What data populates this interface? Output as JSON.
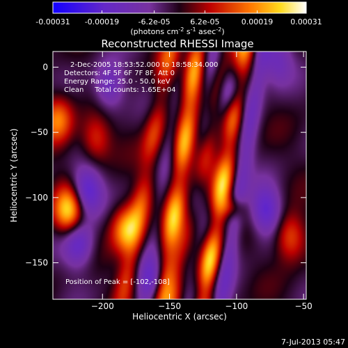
{
  "chart_data": {
    "type": "heatmap",
    "title": "Reconstructed RHESSI Image",
    "xlabel": "Heliocentric X (arcsec)",
    "ylabel": "Heliocentric Y (arcsec)",
    "xlim": [
      -237,
      -48
    ],
    "ylim": [
      -178,
      12
    ],
    "xticks": [
      -200,
      -150,
      -100,
      -50
    ],
    "yticks": [
      0,
      -50,
      -100,
      -150
    ],
    "colorbar": {
      "range": [
        -0.00031,
        0.00031
      ],
      "ticks": [
        "-0.00031",
        "-0.00019",
        "-6.2e-05",
        "6.2e-05",
        "0.00019",
        "0.00031"
      ],
      "unit_label_parts": [
        "(photons cm",
        "-2",
        " s",
        "-1",
        " asec",
        "-2",
        ")"
      ]
    },
    "annotations": [
      "2-Dec-2005 18:53:52.000 to 18:58:34.000",
      "Detectors: 4F 5F 6F 7F 8F, Att 0",
      "Energy Range: 25.0 - 50.0 keV",
      "Clean     Total counts: 1.65E+04"
    ],
    "peak_label": "Position of Peak = [-102,-108]",
    "peak": [
      -102,
      -108
    ],
    "bright_ridges": [
      {
        "x_top": -130,
        "x_bottom": -155,
        "strength": 0.85
      },
      {
        "x_top": -110,
        "x_bottom": -145,
        "strength": 0.55
      },
      {
        "x_top": -95,
        "x_bottom": -125,
        "strength": 1.0
      },
      {
        "x_top": -150,
        "x_bottom": -185,
        "strength": 0.45
      }
    ],
    "blobs": [
      {
        "x": -225,
        "y": -110,
        "v": 0.9
      },
      {
        "x": -182,
        "y": -125,
        "v": 0.75
      },
      {
        "x": -205,
        "y": -55,
        "v": 0.45
      },
      {
        "x": -233,
        "y": -40,
        "v": 0.6
      },
      {
        "x": -60,
        "y": -130,
        "v": 0.55
      },
      {
        "x": -212,
        "y": -95,
        "v": -0.7
      },
      {
        "x": -195,
        "y": -15,
        "v": -0.5
      },
      {
        "x": -105,
        "y": -20,
        "v": -0.55
      },
      {
        "x": -78,
        "y": -110,
        "v": -0.6
      },
      {
        "x": -160,
        "y": -165,
        "v": -0.5
      },
      {
        "x": -218,
        "y": -135,
        "v": -0.6
      },
      {
        "x": -70,
        "y": 5,
        "v": -0.4
      }
    ],
    "colors": {
      "background": "#000000",
      "text": "#ffffff"
    }
  },
  "footer": {
    "timestamp": "7-Jul-2013 05:47"
  }
}
